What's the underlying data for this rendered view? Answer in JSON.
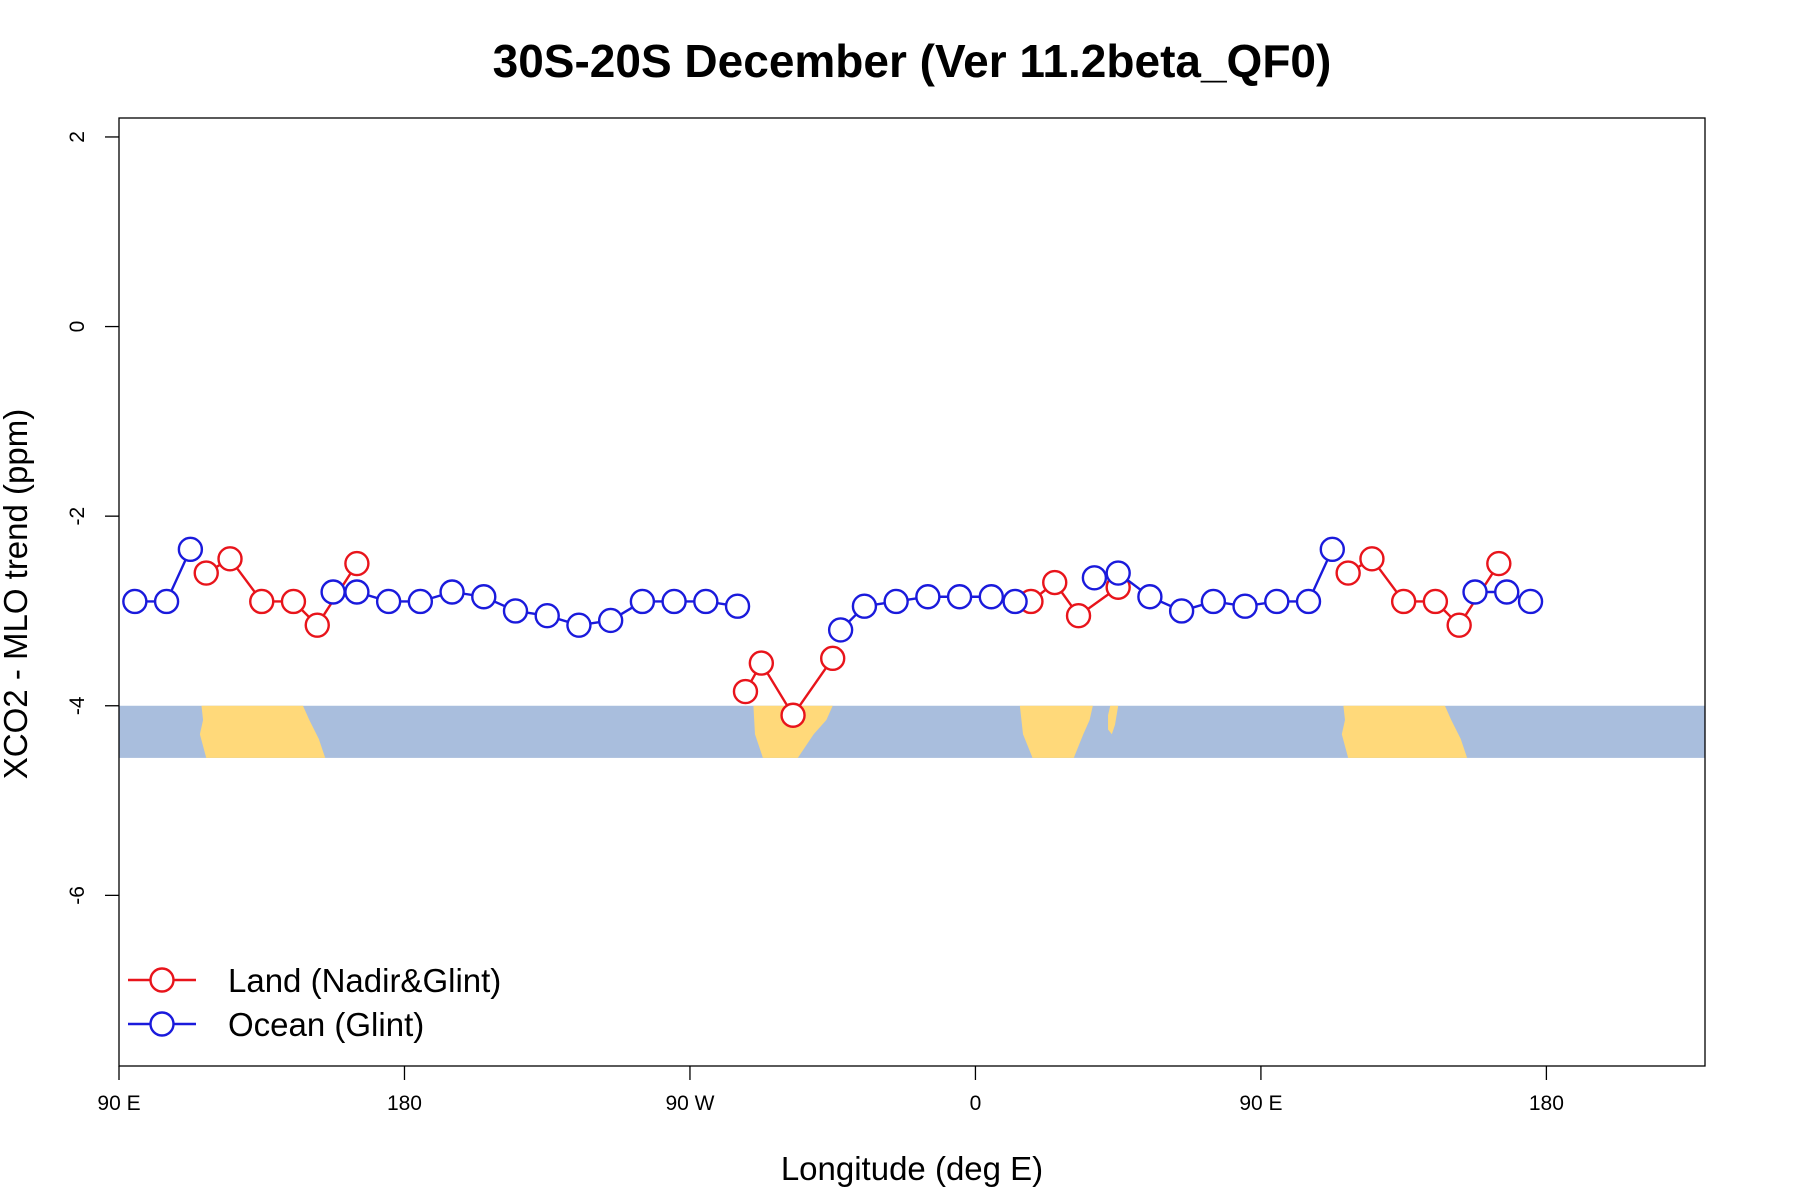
{
  "chart_data": {
    "type": "line",
    "title": "30S-20S December (Ver 11.2beta_QF0)",
    "xlabel": "Longitude (deg E)",
    "ylabel": "XCO2 - MLO trend (ppm)",
    "xlim": [
      90,
      590
    ],
    "ylim": [
      -7.8,
      2.2
    ],
    "x_ticks": [
      {
        "value": 90,
        "label": "90 E"
      },
      {
        "value": 180,
        "label": "180"
      },
      {
        "value": 270,
        "label": "90 W"
      },
      {
        "value": 360,
        "label": "0"
      },
      {
        "value": 450,
        "label": "90 E"
      },
      {
        "value": 540,
        "label": "180"
      }
    ],
    "y_ticks": [
      {
        "value": 2,
        "label": "2"
      },
      {
        "value": 0,
        "label": "0"
      },
      {
        "value": -2,
        "label": "-2"
      },
      {
        "value": -4,
        "label": "-4"
      },
      {
        "value": -6,
        "label": "-6"
      }
    ],
    "grid": false,
    "legend_position": "bottom-left",
    "background_band": {
      "ymin": -4.55,
      "ymax": -4.0,
      "ocean_color": "#A9BEDD",
      "land_color": "#FFD97A"
    },
    "series": [
      {
        "name": "Land (Nadir&Glint)",
        "color": "#E8141B",
        "segments": [
          [
            [
              117.5,
              -2.6
            ],
            [
              125,
              -2.45
            ],
            [
              135,
              -2.9
            ],
            [
              145,
              -2.9
            ],
            [
              152.5,
              -3.15
            ],
            [
              165,
              -2.5
            ]
          ],
          [
            [
              287.5,
              -3.85
            ],
            [
              292.5,
              -3.55
            ],
            [
              302.5,
              -4.1
            ],
            [
              315,
              -3.5
            ]
          ],
          [
            [
              377.5,
              -2.9
            ],
            [
              385,
              -2.7
            ],
            [
              392.5,
              -3.05
            ],
            [
              405,
              -2.75
            ]
          ],
          [
            [
              477.5,
              -2.6
            ],
            [
              485,
              -2.45
            ],
            [
              495,
              -2.9
            ],
            [
              505,
              -2.9
            ],
            [
              512.5,
              -3.15
            ],
            [
              525,
              -2.5
            ]
          ]
        ]
      },
      {
        "name": "Ocean (Glint)",
        "color": "#1A1ADC",
        "segments": [
          [
            [
              95,
              -2.9
            ],
            [
              105,
              -2.9
            ],
            [
              112.5,
              -2.35
            ]
          ],
          [
            [
              157.5,
              -2.8
            ],
            [
              165,
              -2.8
            ],
            [
              175,
              -2.9
            ],
            [
              185,
              -2.9
            ],
            [
              195,
              -2.8
            ],
            [
              205,
              -2.85
            ],
            [
              215,
              -3.0
            ],
            [
              225,
              -3.05
            ],
            [
              235,
              -3.15
            ],
            [
              245,
              -3.1
            ],
            [
              255,
              -2.9
            ],
            [
              265,
              -2.9
            ],
            [
              275,
              -2.9
            ],
            [
              285,
              -2.95
            ]
          ],
          [
            [
              317.5,
              -3.2
            ],
            [
              325,
              -2.95
            ],
            [
              335,
              -2.9
            ],
            [
              345,
              -2.85
            ],
            [
              355,
              -2.85
            ],
            [
              365,
              -2.85
            ],
            [
              372.5,
              -2.9
            ]
          ],
          [
            [
              397.5,
              -2.65
            ],
            [
              405,
              -2.6
            ],
            [
              415,
              -2.85
            ],
            [
              425,
              -3.0
            ],
            [
              435,
              -2.9
            ],
            [
              445,
              -2.95
            ],
            [
              455,
              -2.9
            ],
            [
              465,
              -2.9
            ],
            [
              472.5,
              -2.35
            ]
          ],
          [
            [
              517.5,
              -2.8
            ],
            [
              527.5,
              -2.8
            ],
            [
              535,
              -2.9
            ]
          ]
        ]
      }
    ]
  }
}
